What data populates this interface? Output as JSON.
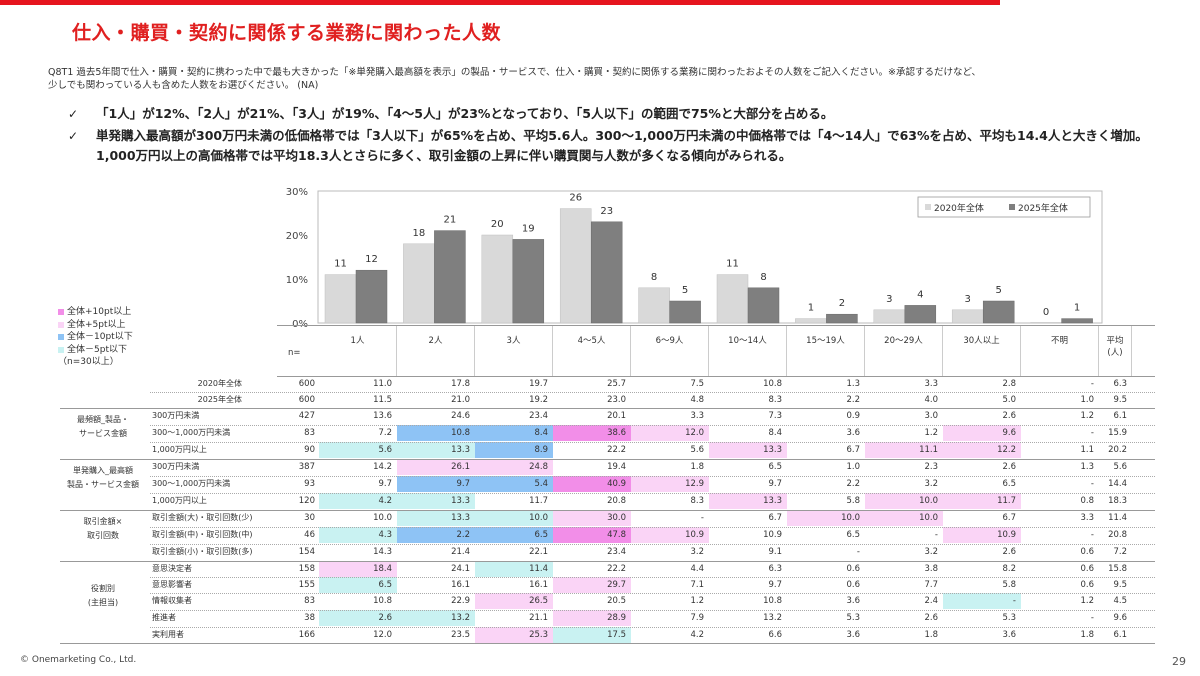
{
  "page_title": "仕入・購買・契約に関係する業務に関わった人数",
  "question": {
    "line1": "Q8T1  過去5年間で仕入・購買・契約に携わった中で最も大きかった「※単発購入最高額を表示」の製品・サービスで、仕入・購買・契約に関係する業務に関わったおよその人数をご記入ください。※承認するだけなど、",
    "line2": "少しでも関わっている人も含めた人数をお選びください。     (NA)"
  },
  "bullets": [
    "「1人」が12%、「2人」が21%、「3人」が19%、「4～5人」が23%となっており、「5人以下」の範囲で75%と大部分を占める。",
    "単発購入最高額が300万円未満の低価格帯では「3人以下」が65%を占め、平均5.6人。300～1,000万円未満の中価格帯では「4～14人」で63%を占め、平均も14.4人と大きく増加。1,000万円以上の高価格帯では平均18.3人とさらに多く、取引金額の上昇に伴い購買関与人数が多くなる傾向がみられる。"
  ],
  "check_mark": "✓",
  "colors": {
    "accent": "#e6141e",
    "bar2020": "#d9d9d9",
    "bar2025": "#7f7f7f",
    "plus10": "#f28ee8",
    "plus5": "#fad4f6",
    "minus10": "#8ec3f5",
    "minus5": "#c9f2f2"
  },
  "chart_data": {
    "type": "bar",
    "categories": [
      "1人",
      "2人",
      "3人",
      "4～5人",
      "6～9人",
      "10～14人",
      "15～19人",
      "20～29人",
      "30人以上",
      "不明"
    ],
    "series": [
      {
        "name": "2020年全体",
        "values": [
          11,
          18,
          20,
          26,
          8,
          11,
          1,
          3,
          3,
          0
        ]
      },
      {
        "name": "2025年全体",
        "values": [
          12,
          21,
          19,
          23,
          5,
          8,
          2,
          4,
          5,
          1
        ]
      }
    ],
    "yticks": [
      "0%",
      "10%",
      "20%",
      "30%"
    ],
    "ylim": [
      0,
      30
    ],
    "legend": "top-right",
    "grid": false
  },
  "legend_notes": [
    {
      "label": "全体+10pt以上",
      "color": "#f28ee8"
    },
    {
      "label": "全体+5pt以上",
      "color": "#fad4f6"
    },
    {
      "label": "全体－10pt以下",
      "color": "#8ec3f5"
    },
    {
      "label": "全体－5pt以下",
      "color": "#c9f2f2"
    },
    {
      "label": "（n=30以上）",
      "color": ""
    }
  ],
  "table": {
    "n_header": "n=",
    "columns": [
      "1人",
      "2人",
      "3人",
      "4～5人",
      "6～9人",
      "10～14人",
      "15～19人",
      "20～29人",
      "30人以上",
      "不明",
      "平均\n(人)"
    ],
    "groups": [
      {
        "label": "最頻額_製品・\nサービス金額"
      },
      {
        "label": "単発購入_最高額\n製品・サービス金額"
      },
      {
        "label": "取引金額×\n取引回数"
      },
      {
        "label": "役割別\n(主担当)"
      }
    ],
    "rows": [
      {
        "label": "2020年全体",
        "n": "600",
        "v": [
          "11.0",
          "17.8",
          "19.7",
          "25.7",
          "7.5",
          "10.8",
          "1.3",
          "3.3",
          "2.8",
          "-",
          "6.3"
        ],
        "h": [
          "",
          "",
          "",
          "",
          "",
          "",
          "",
          "",
          "",
          "",
          ""
        ]
      },
      {
        "label": "2025年全体",
        "n": "600",
        "v": [
          "11.5",
          "21.0",
          "19.2",
          "23.0",
          "4.8",
          "8.3",
          "2.2",
          "4.0",
          "5.0",
          "1.0",
          "9.5"
        ],
        "h": [
          "",
          "",
          "",
          "",
          "",
          "",
          "",
          "",
          "",
          "",
          ""
        ]
      },
      {
        "label": "300万円未満",
        "n": "427",
        "v": [
          "13.6",
          "24.6",
          "23.4",
          "20.1",
          "3.3",
          "7.3",
          "0.9",
          "3.0",
          "2.6",
          "1.2",
          "6.1"
        ],
        "h": [
          "",
          "",
          "",
          "",
          "",
          "",
          "",
          "",
          "",
          "",
          ""
        ]
      },
      {
        "label": "300～1,000万円未満",
        "n": "83",
        "v": [
          "7.2",
          "10.8",
          "8.4",
          "38.6",
          "12.0",
          "8.4",
          "3.6",
          "1.2",
          "9.6",
          "-",
          "15.9"
        ],
        "h": [
          "",
          "m10",
          "m10",
          "p10",
          "p5",
          "",
          "",
          "",
          "p5",
          "",
          ""
        ]
      },
      {
        "label": "1,000万円以上",
        "n": "90",
        "v": [
          "5.6",
          "13.3",
          "8.9",
          "22.2",
          "5.6",
          "13.3",
          "6.7",
          "11.1",
          "12.2",
          "1.1",
          "20.2"
        ],
        "h": [
          "m5",
          "m5",
          "m10",
          "",
          "",
          "p5",
          "",
          "p5",
          "p5",
          "",
          ""
        ]
      },
      {
        "label": "300万円未満",
        "n": "387",
        "v": [
          "14.2",
          "26.1",
          "24.8",
          "19.4",
          "1.8",
          "6.5",
          "1.0",
          "2.3",
          "2.6",
          "1.3",
          "5.6"
        ],
        "h": [
          "",
          "p5",
          "p5",
          "",
          "",
          "",
          "",
          "",
          "",
          "",
          ""
        ]
      },
      {
        "label": "300～1,000万円未満",
        "n": "93",
        "v": [
          "9.7",
          "9.7",
          "5.4",
          "40.9",
          "12.9",
          "9.7",
          "2.2",
          "3.2",
          "6.5",
          "-",
          "14.4"
        ],
        "h": [
          "",
          "m10",
          "m10",
          "p10",
          "p5",
          "",
          "",
          "",
          "",
          "",
          ""
        ]
      },
      {
        "label": "1,000万円以上",
        "n": "120",
        "v": [
          "4.2",
          "13.3",
          "11.7",
          "20.8",
          "8.3",
          "13.3",
          "5.8",
          "10.0",
          "11.7",
          "0.8",
          "18.3"
        ],
        "h": [
          "m5",
          "m5",
          "",
          "",
          "",
          "p5",
          "",
          "p5",
          "p5",
          "",
          ""
        ]
      },
      {
        "label": "取引金額(大)・取引回数(少)",
        "n": "30",
        "v": [
          "10.0",
          "13.3",
          "10.0",
          "30.0",
          "-",
          "6.7",
          "10.0",
          "10.0",
          "6.7",
          "3.3",
          "11.4"
        ],
        "h": [
          "",
          "m5",
          "m5",
          "p5",
          "",
          "",
          "p5",
          "p5",
          "",
          "",
          ""
        ]
      },
      {
        "label": "取引金額(中)・取引回数(中)",
        "n": "46",
        "v": [
          "4.3",
          "2.2",
          "6.5",
          "47.8",
          "10.9",
          "10.9",
          "6.5",
          "-",
          "10.9",
          "-",
          "20.8"
        ],
        "h": [
          "m5",
          "m10",
          "m10",
          "p10",
          "p5",
          "",
          "",
          "",
          "p5",
          "",
          ""
        ]
      },
      {
        "label": "取引金額(小)・取引回数(多)",
        "n": "154",
        "v": [
          "14.3",
          "21.4",
          "22.1",
          "23.4",
          "3.2",
          "9.1",
          "-",
          "3.2",
          "2.6",
          "0.6",
          "7.2"
        ],
        "h": [
          "",
          "",
          "",
          "",
          "",
          "",
          "",
          "",
          "",
          "",
          ""
        ]
      },
      {
        "label": "意思決定者",
        "n": "158",
        "v": [
          "18.4",
          "24.1",
          "11.4",
          "22.2",
          "4.4",
          "6.3",
          "0.6",
          "3.8",
          "8.2",
          "0.6",
          "15.8"
        ],
        "h": [
          "p5",
          "",
          "m5",
          "",
          "",
          "",
          "",
          "",
          "",
          "",
          ""
        ]
      },
      {
        "label": "意思影響者",
        "n": "155",
        "v": [
          "6.5",
          "16.1",
          "16.1",
          "29.7",
          "7.1",
          "9.7",
          "0.6",
          "7.7",
          "5.8",
          "0.6",
          "9.5"
        ],
        "h": [
          "m5",
          "",
          "",
          "p5",
          "",
          "",
          "",
          "",
          "",
          "",
          ""
        ]
      },
      {
        "label": "情報収集者",
        "n": "83",
        "v": [
          "10.8",
          "22.9",
          "26.5",
          "20.5",
          "1.2",
          "10.8",
          "3.6",
          "2.4",
          "-",
          "1.2",
          "4.5"
        ],
        "h": [
          "",
          "",
          "p5",
          "",
          "",
          "",
          "",
          "",
          "m5",
          "",
          ""
        ]
      },
      {
        "label": "推進者",
        "n": "38",
        "v": [
          "2.6",
          "13.2",
          "21.1",
          "28.9",
          "7.9",
          "13.2",
          "5.3",
          "2.6",
          "5.3",
          "-",
          "9.6"
        ],
        "h": [
          "m5",
          "m5",
          "",
          "p5",
          "",
          "",
          "",
          "",
          "",
          "",
          ""
        ]
      },
      {
        "label": "実利用者",
        "n": "166",
        "v": [
          "12.0",
          "23.5",
          "25.3",
          "17.5",
          "4.2",
          "6.6",
          "3.6",
          "1.8",
          "3.6",
          "1.8",
          "6.1"
        ],
        "h": [
          "",
          "",
          "p5",
          "m5",
          "",
          "",
          "",
          "",
          "",
          "",
          ""
        ]
      }
    ]
  },
  "footer": "© Onemarketing Co., Ltd.",
  "page_number": "29"
}
